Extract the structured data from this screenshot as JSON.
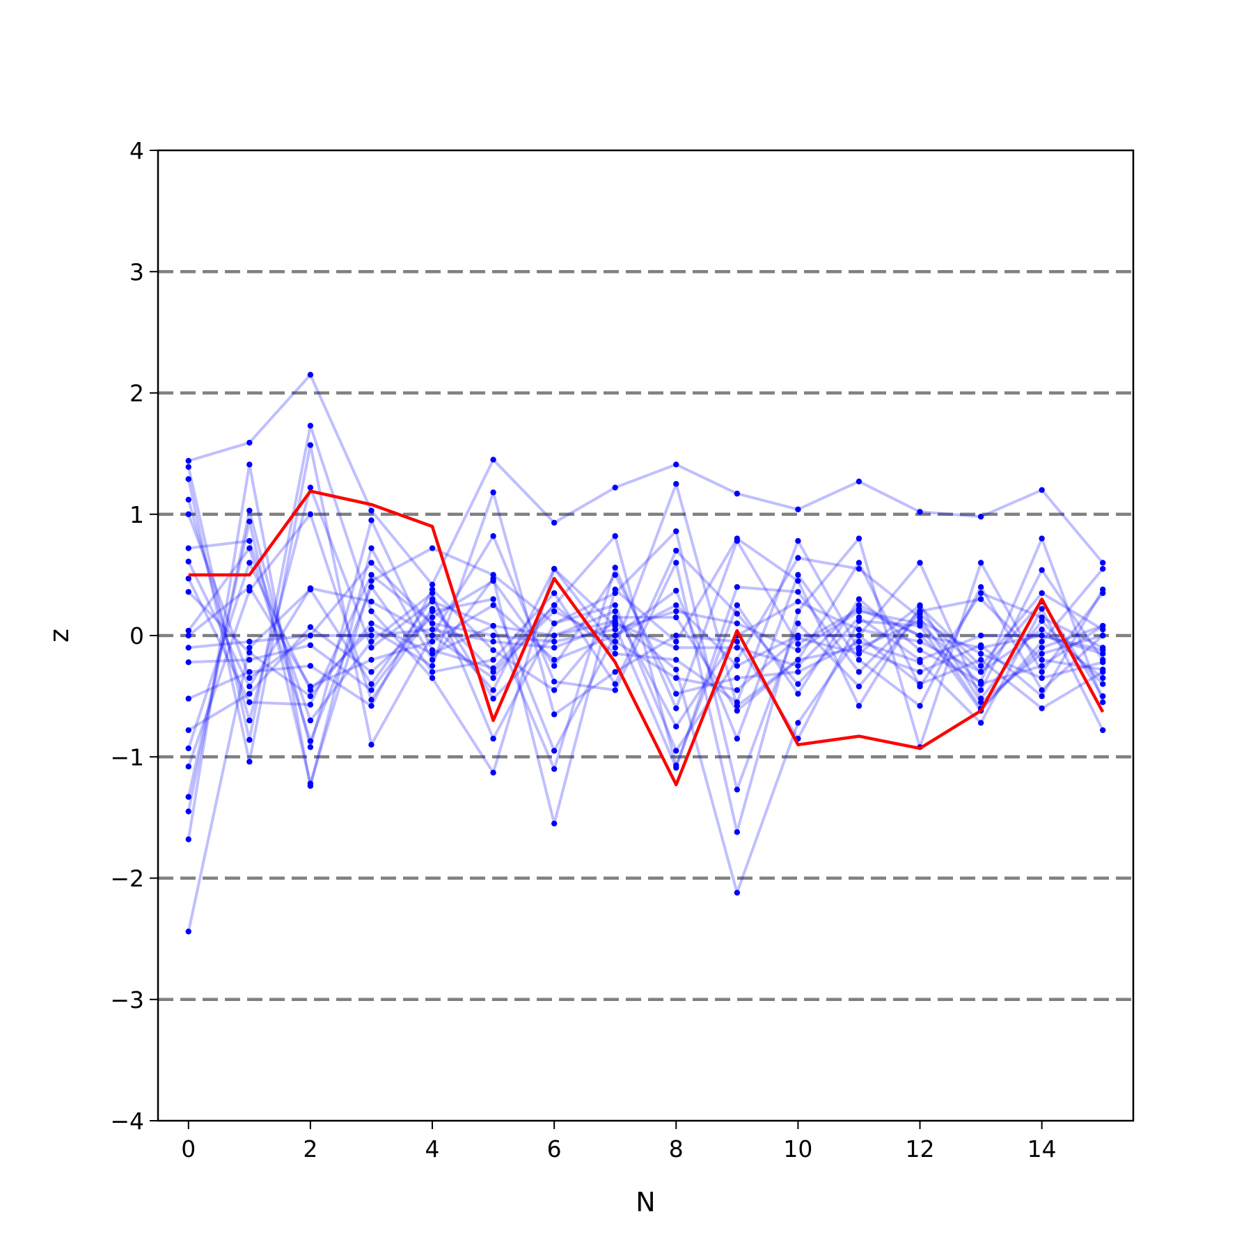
{
  "chart_data": {
    "type": "line",
    "title": "",
    "xlabel": "N",
    "ylabel": "z",
    "xlim": [
      -0.5,
      15.5
    ],
    "ylim": [
      -4,
      4
    ],
    "x_ticks": [
      0,
      2,
      4,
      6,
      8,
      10,
      12,
      14
    ],
    "x_tick_labels": [
      "0",
      "2",
      "4",
      "6",
      "8",
      "10",
      "12",
      "14"
    ],
    "y_ticks": [
      -4,
      -3,
      -2,
      -1,
      0,
      1,
      2,
      3,
      4
    ],
    "y_tick_labels": [
      "−4",
      "−3",
      "−2",
      "−1",
      "0",
      "1",
      "2",
      "3",
      "4"
    ],
    "grid": false,
    "reference_lines": {
      "y_values": [
        -3,
        -2,
        -1,
        0,
        1,
        2,
        3
      ],
      "style": "dashed",
      "color": "#808080"
    },
    "x": [
      0,
      1,
      2,
      3,
      4,
      5,
      6,
      7,
      8,
      9,
      10,
      11,
      12,
      13,
      14,
      15
    ],
    "series": [
      {
        "color": "#0000ff",
        "opacity": 0.25,
        "markers": true,
        "values": [
          1.44,
          1.59,
          2.15,
          1.03,
          0.42,
          1.45,
          0.93,
          1.22,
          1.41,
          1.17,
          1.04,
          1.27,
          1.02,
          0.98,
          1.2,
          0.6
        ]
      },
      {
        "color": "#0000ff",
        "opacity": 0.25,
        "markers": true,
        "values": [
          -2.44,
          -0.1,
          0.38,
          -0.4,
          0.3,
          -0.52,
          0.0,
          0.12,
          -0.28,
          -2.12,
          -0.72,
          0.0,
          0.6,
          -0.52,
          0.12,
          -0.4
        ]
      },
      {
        "color": "#0000ff",
        "opacity": 0.25,
        "markers": true,
        "values": [
          1.39,
          -0.86,
          1.73,
          0.2,
          -0.35,
          -1.13,
          0.55,
          -0.1,
          1.25,
          -0.58,
          -0.2,
          0.6,
          -0.42,
          0.35,
          0.15,
          -0.1
        ]
      },
      {
        "color": "#0000ff",
        "opacity": 0.25,
        "markers": true,
        "values": [
          -1.68,
          1.41,
          -1.24,
          0.72,
          -0.2,
          0.47,
          -1.55,
          0.38,
          -0.05,
          0.8,
          0.45,
          -0.58,
          0.24,
          -0.25,
          0.35,
          0.05
        ]
      },
      {
        "color": "#0000ff",
        "opacity": 0.25,
        "markers": true,
        "values": [
          1.29,
          -1.04,
          1.57,
          -0.9,
          0.0,
          0.82,
          -0.38,
          -0.45,
          0.6,
          -1.62,
          0.2,
          0.8,
          -0.92,
          0.6,
          -0.3,
          0.35
        ]
      },
      {
        "color": "#0000ff",
        "opacity": 0.25,
        "markers": true,
        "values": [
          -1.45,
          1.03,
          -0.92,
          0.95,
          -0.12,
          -0.27,
          0.25,
          0.82,
          -1.07,
          0.25,
          -0.48,
          0.3,
          -0.12,
          -0.38,
          0.8,
          -0.55
        ]
      },
      {
        "color": "#0000ff",
        "opacity": 0.25,
        "markers": true,
        "values": [
          1.12,
          -0.7,
          1.22,
          -0.1,
          0.28,
          0.08,
          -1.1,
          0.56,
          -0.6,
          0.78,
          -0.07,
          0.22,
          0.0,
          -0.45,
          0.54,
          -0.2
        ]
      },
      {
        "color": "#0000ff",
        "opacity": 0.25,
        "markers": true,
        "values": [
          -1.33,
          0.94,
          -1.22,
          0.45,
          0.72,
          0.5,
          0.1,
          0.25,
          -0.95,
          -0.2,
          0.64,
          0.55,
          0.15,
          -0.6,
          -0.1,
          0.08
        ]
      },
      {
        "color": "#0000ff",
        "opacity": 0.25,
        "markers": true,
        "values": [
          1.0,
          -0.35,
          0.0,
          0.6,
          0.1,
          -0.45,
          0.55,
          0.08,
          -1.09,
          0.4,
          0.36,
          -0.3,
          0.2,
          0.3,
          -0.2,
          -0.28
        ]
      },
      {
        "color": "#0000ff",
        "opacity": 0.25,
        "markers": true,
        "values": [
          -1.08,
          0.37,
          1.0,
          -0.53,
          0.2,
          0.3,
          -0.95,
          0.0,
          0.37,
          -0.85,
          0.5,
          -0.2,
          -0.58,
          0.4,
          -0.45,
          0.0
        ]
      },
      {
        "color": "#0000ff",
        "opacity": 0.25,
        "markers": true,
        "values": [
          0.72,
          0.78,
          -0.7,
          -0.05,
          0.35,
          -0.85,
          0.1,
          0.35,
          0.86,
          -1.27,
          0.1,
          -0.42,
          0.18,
          -0.3,
          0.05,
          -0.35
        ]
      },
      {
        "color": "#0000ff",
        "opacity": 0.25,
        "markers": true,
        "values": [
          -0.93,
          0.6,
          -0.45,
          0.05,
          -0.25,
          1.18,
          -0.65,
          -0.3,
          0.0,
          -0.05,
          -0.85,
          0.12,
          0.08,
          -0.62,
          -0.05,
          0.55
        ]
      },
      {
        "color": "#0000ff",
        "opacity": 0.25,
        "markers": true,
        "values": [
          0.61,
          -0.42,
          0.39,
          0.28,
          0.0,
          -0.35,
          0.25,
          -0.15,
          -0.2,
          -0.55,
          0.78,
          -0.12,
          -0.3,
          -0.08,
          -0.5,
          0.38
        ]
      },
      {
        "color": "#0000ff",
        "opacity": 0.25,
        "markers": true,
        "values": [
          -0.78,
          -0.48,
          0.07,
          -0.3,
          0.15,
          0.45,
          -0.25,
          0.5,
          -0.48,
          -0.35,
          -0.3,
          -0.05,
          -0.22,
          -0.72,
          0.22,
          -0.78
        ]
      },
      {
        "color": "#0000ff",
        "opacity": 0.25,
        "markers": true,
        "values": [
          0.47,
          -0.55,
          -0.57,
          0.5,
          0.1,
          0.0,
          -0.05,
          0.05,
          0.2,
          0.1,
          -0.12,
          0.2,
          0.1,
          -0.4,
          -0.25,
          0.08
        ]
      },
      {
        "color": "#0000ff",
        "opacity": 0.25,
        "markers": true,
        "values": [
          0.04,
          0.72,
          -0.87,
          0.4,
          -0.3,
          -0.2,
          0.35,
          -0.4,
          0.7,
          0.18,
          -0.4,
          0.15,
          -0.2,
          0.0,
          0.0,
          -0.15
        ]
      },
      {
        "color": "#0000ff",
        "opacity": 0.25,
        "markers": true,
        "values": [
          -0.52,
          -0.3,
          -0.25,
          -0.58,
          0.38,
          -0.12,
          -0.45,
          0.15,
          0.15,
          -0.62,
          -0.2,
          -0.1,
          0.12,
          -0.15,
          -0.35,
          -0.22
        ]
      },
      {
        "color": "#0000ff",
        "opacity": 0.25,
        "markers": true,
        "values": [
          0.36,
          -0.14,
          -0.5,
          0.1,
          -0.15,
          0.08,
          0.0,
          0.2,
          -0.75,
          0.0,
          0.28,
          0.05,
          -0.05,
          -0.3,
          0.28,
          -0.5
        ]
      },
      {
        "color": "#0000ff",
        "opacity": 0.25,
        "markers": true,
        "values": [
          -0.22,
          -0.2,
          -0.08,
          -0.45,
          0.22,
          -0.3,
          0.2,
          -0.05,
          -0.35,
          -0.45,
          -0.02,
          -0.15,
          0.25,
          -0.55,
          -0.15,
          0.0
        ]
      },
      {
        "color": "#0000ff",
        "opacity": 0.25,
        "markers": true,
        "values": [
          0.0,
          0.4,
          -0.42,
          -0.2,
          -0.05,
          0.25,
          -0.2,
          0.0,
          0.25,
          -0.25,
          0.0,
          0.0,
          -0.4,
          -0.2,
          -0.6,
          -0.3
        ]
      },
      {
        "color": "#0000ff",
        "opacity": 0.25,
        "markers": true,
        "values": [
          -0.1,
          -0.05,
          0.0,
          0.0,
          0.05,
          -0.05,
          -0.1,
          0.1,
          -0.1,
          -0.1,
          -0.25,
          0.25,
          0.0,
          -0.1,
          0.0,
          -0.12
        ]
      },
      {
        "color": "#ff0000",
        "opacity": 1.0,
        "markers": false,
        "values": [
          0.5,
          0.5,
          1.19,
          1.08,
          0.9,
          -0.7,
          0.47,
          -0.22,
          -1.23,
          0.04,
          -0.9,
          -0.83,
          -0.93,
          -0.62,
          0.3,
          -0.63
        ]
      }
    ]
  }
}
